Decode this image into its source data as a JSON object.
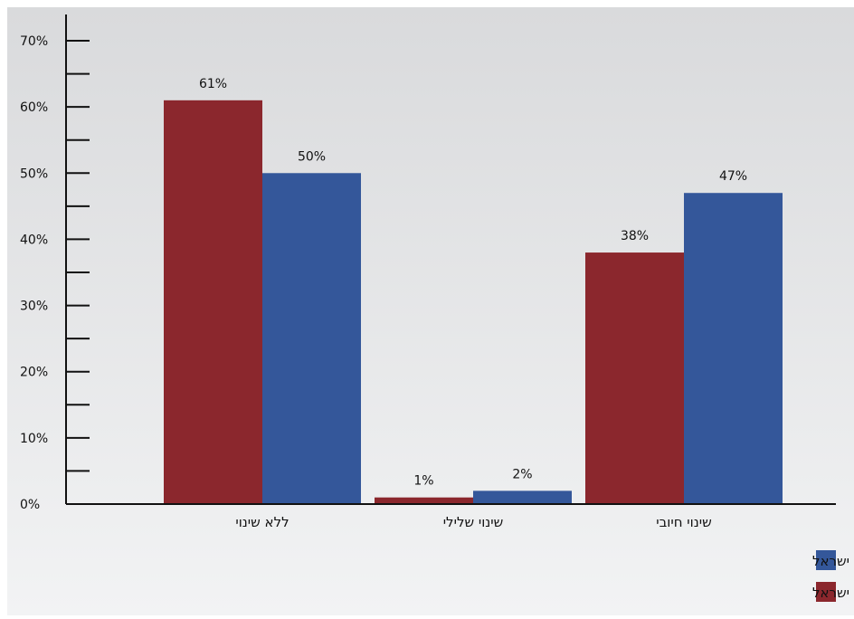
{
  "chart_data": {
    "type": "bar",
    "categories": [
      "ללא שינוי",
      "שינוי שלילי",
      "שינוי חיובי"
    ],
    "series": [
      {
        "name": "רמת היכרות גבוהה עם ישראל",
        "color": "#8b272d",
        "values": [
          61,
          1,
          38
        ],
        "labels": [
          "61%",
          "1%",
          "38%"
        ]
      },
      {
        "name": "רמת היכרות נמוכה עם ישראל",
        "color": "#34579a",
        "values": [
          50,
          2,
          47
        ],
        "labels": [
          "50%",
          "2%",
          "47%"
        ]
      }
    ],
    "y_ticks": [
      0,
      10,
      20,
      30,
      40,
      50,
      60,
      70
    ],
    "y_tick_labels": [
      "0%",
      "10%",
      "20%",
      "30%",
      "40%",
      "50%",
      "60%",
      "70%"
    ],
    "ylim": [
      0,
      70
    ],
    "minor_ticks": true,
    "grid": false,
    "legend_position": "bottom-right",
    "background": "gradient light gray"
  }
}
